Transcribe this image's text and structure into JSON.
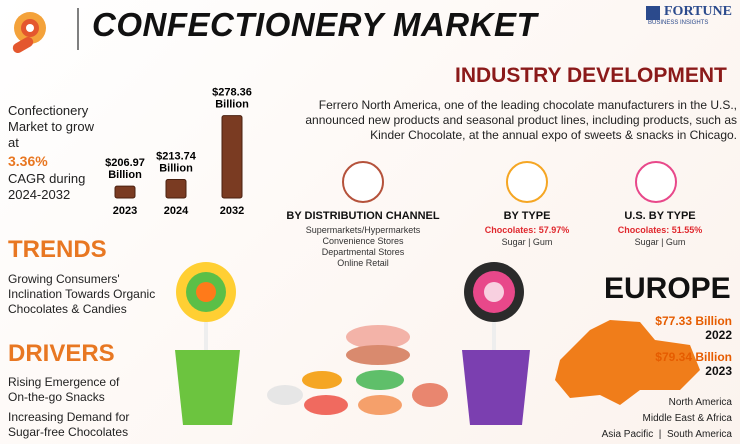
{
  "header": {
    "title": "CONFECTIONERY MARKET",
    "logo": "FORTUNE",
    "logo_sub": "BUSINESS INSIGHTS"
  },
  "growth": {
    "lead": "Confectionery Market to grow at",
    "rate": "3.36%",
    "tail": "CAGR during 2024-2032"
  },
  "market_chart": {
    "type": "bar",
    "categories": [
      "2023",
      "2024",
      "2032"
    ],
    "values": [
      206.97,
      213.74,
      278.36
    ],
    "value_labels": [
      "$206.97 Billion",
      "$213.74 Billion",
      "$278.36 Billion"
    ],
    "color": "#7a3b22",
    "ylim": [
      195,
      282
    ]
  },
  "industry": {
    "title": "INDUSTRY DEVELOPMENT",
    "text": "Ferrero North America, one of the leading chocolate manufacturers in the U.S., announced new products  and seasonal product lines, including products, such as Kinder Chocolate, at the annual expo of sweets & snacks in Chicago."
  },
  "segments": [
    {
      "title": "BY DISTRIBUTION CHANNEL",
      "items": [
        "Supermarkets/Hypermarkets",
        "Convenience Stores",
        "Departmental Stores",
        "Online Retail"
      ]
    },
    {
      "title": "BY TYPE",
      "highlight": "Chocolates: 57.97%",
      "items": [
        "Sugar  |  Gum"
      ]
    },
    {
      "title": "U.S. BY TYPE",
      "highlight": "Chocolates: 51.55%",
      "items": [
        "Sugar  |  Gum"
      ]
    }
  ],
  "trends": {
    "title": "TRENDS",
    "text": "Growing Consumers' Inclination Towards Organic Chocolates & Candies"
  },
  "drivers": {
    "title": "DRIVERS",
    "items": [
      "Rising Emergence of On-the-go Snacks",
      "Increasing Demand for Sugar-free Chocolates"
    ]
  },
  "europe": {
    "title": "EUROPE",
    "stats": [
      {
        "value": "$77.33 Billion",
        "year": "2022"
      },
      {
        "value": "$79.34 Billion",
        "year": "2023"
      }
    ],
    "regions": [
      "North America",
      "Middle East & Africa",
      "Asia Pacific  |  South America"
    ]
  }
}
